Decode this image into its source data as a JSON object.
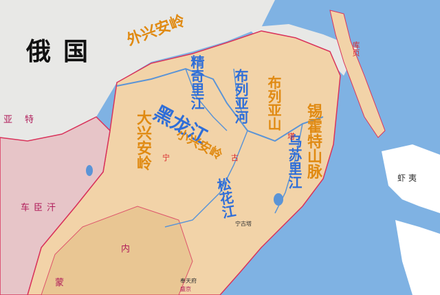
{
  "colors": {
    "sea": "#7fb2e3",
    "russia": "#e8e8e6",
    "qing_land": "#f2d3a8",
    "qing_dark": "#e8c48e",
    "mongol": "#e7c5c8",
    "border_red": "#d9335b",
    "river": "#5b94d6",
    "label_orange": "#e08a12",
    "label_blue": "#2f6ed8",
    "island": "#ffffff"
  },
  "labels": {
    "russia": "俄国",
    "outer_xingan": "外兴安岭",
    "jingqili_river": "精奇里江",
    "buliya_river": "布列亚河",
    "buliya_mountains": "布列亚山",
    "heilong_river": "黑龙江",
    "xiao_xingan": "小兴安岭",
    "da_xingan": "大兴安岭",
    "sikhote_alin": "锡霍特山脉",
    "wusuli_river": "乌苏里江",
    "songhua_river": "松花江",
    "kuye": "库页",
    "xiayi": "虾夷",
    "yate": "亚特",
    "cheche": "车臣汗",
    "ning": "宁",
    "gu": "古",
    "ta": "塔",
    "meng": "蒙",
    "nei": "内",
    "ningguta": "宁古塔",
    "fengtian": "奉天府",
    "shengjing": "盛京"
  }
}
